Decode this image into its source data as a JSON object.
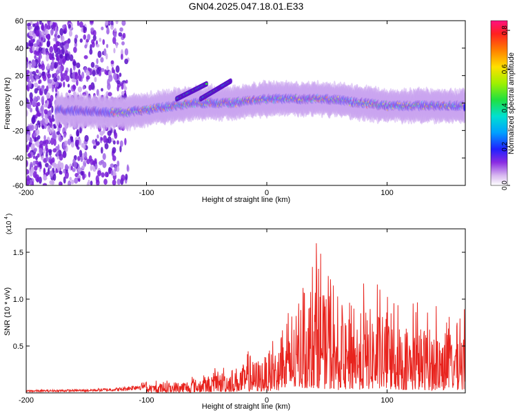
{
  "title": "GN04.2025.047.18.01.E33",
  "chart_data": [
    {
      "type": "heatmap",
      "xlabel": "Height of straight line (km)",
      "ylabel": "Frequency (Hz)",
      "xlim": [
        -200,
        165
      ],
      "ylim": [
        -60,
        60
      ],
      "x_ticks": [
        -200,
        -100,
        0,
        100
      ],
      "y_ticks": [
        60,
        40,
        20,
        0,
        -20,
        -40,
        -60
      ],
      "colorbar": {
        "label": "Normalized spectral amplitude",
        "range": [
          0.0,
          0.85
        ],
        "ticks": [
          0.0,
          0.2,
          0.4,
          0.6,
          0.8
        ]
      },
      "description_regions": [
        {
          "kind": "noise",
          "x": [
            -200,
            -115
          ],
          "y": [
            -60,
            60
          ]
        },
        {
          "kind": "signal_track",
          "x": [
            -175,
            165
          ],
          "y_center": [
            [
              -175,
              -5
            ],
            [
              -120,
              -7
            ],
            [
              -100,
              -5
            ],
            [
              -60,
              0
            ],
            [
              -30,
              0
            ],
            [
              0,
              3
            ],
            [
              50,
              3
            ],
            [
              100,
              -2
            ],
            [
              165,
              -2
            ]
          ]
        },
        {
          "kind": "signal_branch",
          "x": [
            -75,
            -50
          ],
          "y": [
            [
              -75,
              3
            ],
            [
              -50,
              14
            ]
          ]
        },
        {
          "kind": "signal_branch",
          "x": [
            -55,
            -30
          ],
          "y": [
            [
              -55,
              3
            ],
            [
              -30,
              16
            ]
          ]
        }
      ]
    },
    {
      "type": "line",
      "xlabel": "Height of straight line (km)",
      "ylabel": "SNR (10 * v/v)",
      "y_multiplier": "(x10",
      "y_multiplier_exp": "4",
      "xlim": [
        -200,
        165
      ],
      "ylim": [
        0,
        1.75
      ],
      "x_ticks": [
        -200,
        -100,
        0,
        100
      ],
      "y_ticks": [
        0.5,
        1.0,
        1.5
      ],
      "series": [
        {
          "color": "#e8231d",
          "envelope": [
            [
              -200,
              0.03
            ],
            [
              -150,
              0.04
            ],
            [
              -120,
              0.06
            ],
            [
              -100,
              0.12
            ],
            [
              -60,
              0.2
            ],
            [
              -30,
              0.35
            ],
            [
              0,
              0.55
            ],
            [
              20,
              0.9
            ],
            [
              30,
              1.45
            ],
            [
              40,
              1.75
            ],
            [
              50,
              1.35
            ],
            [
              60,
              1.0
            ],
            [
              75,
              1.15
            ],
            [
              85,
              1.25
            ],
            [
              100,
              1.1
            ],
            [
              120,
              1.0
            ],
            [
              140,
              0.95
            ],
            [
              165,
              1.0
            ]
          ]
        }
      ]
    }
  ]
}
